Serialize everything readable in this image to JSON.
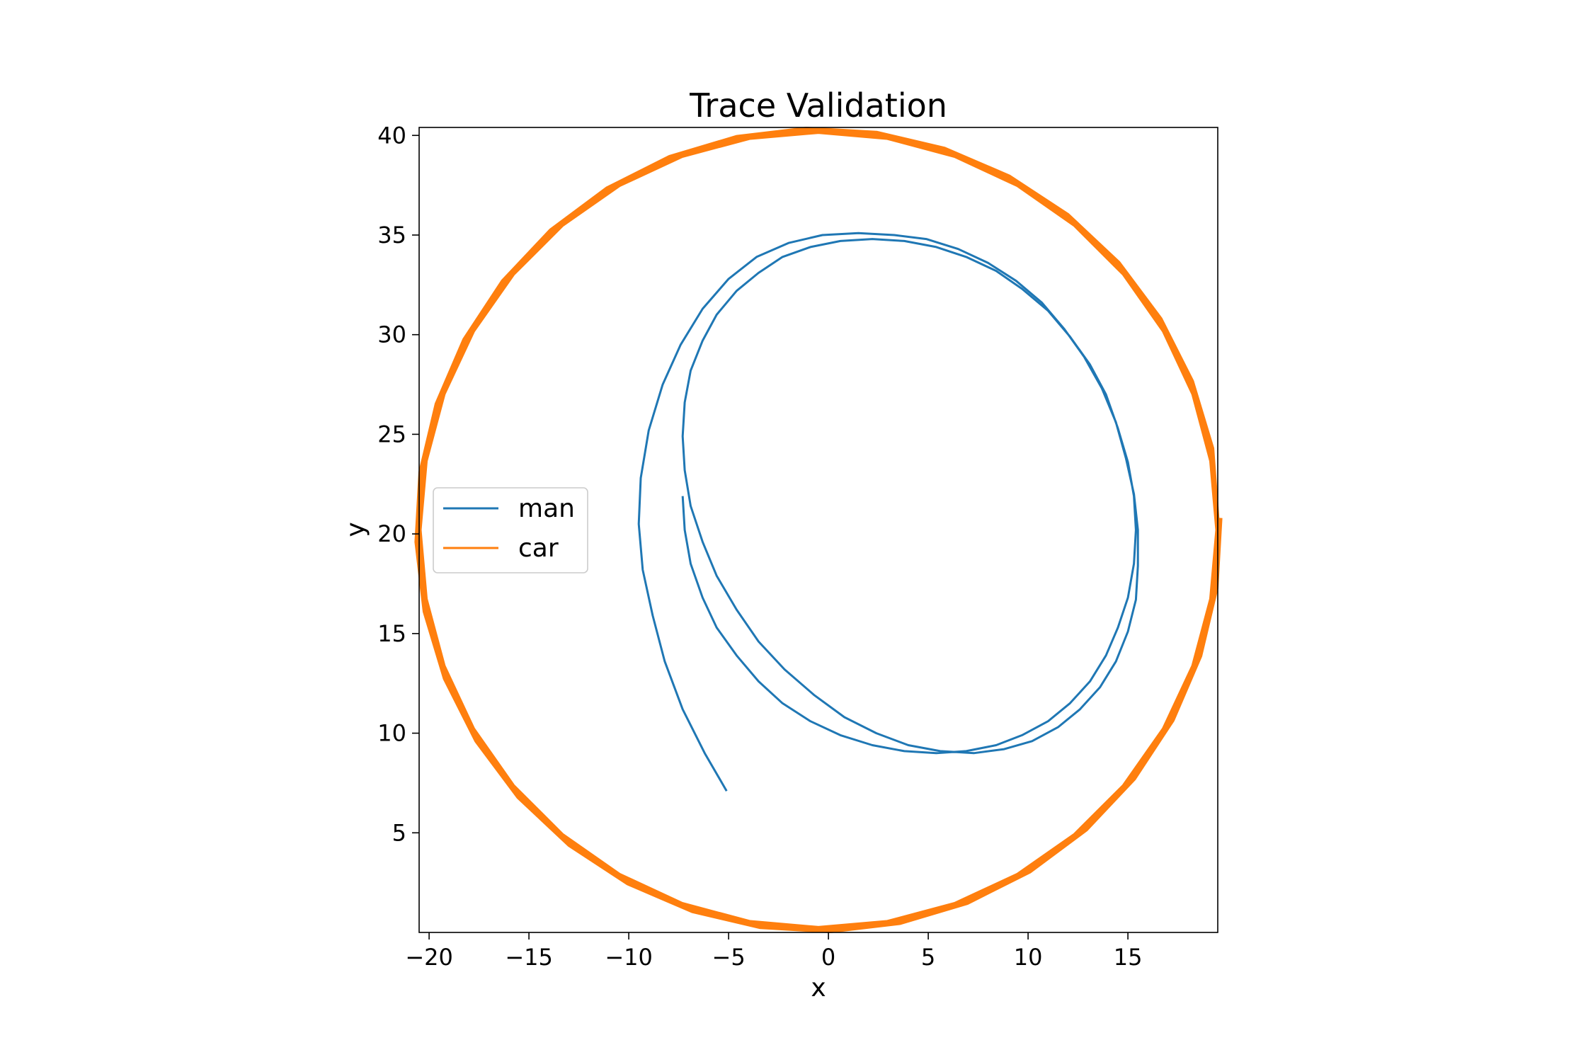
{
  "chart_data": {
    "type": "line",
    "title": "Trace Validation",
    "xlabel": "x",
    "ylabel": "y",
    "xlim": [
      -20.5,
      19.5
    ],
    "ylim": [
      0,
      40.4
    ],
    "xticks": [
      -20,
      -15,
      -10,
      -5,
      0,
      5,
      10,
      15
    ],
    "xtick_labels": [
      "−20",
      "−15",
      "−10",
      "−5",
      "0",
      "5",
      "10",
      "15"
    ],
    "yticks": [
      5,
      10,
      15,
      20,
      25,
      30,
      35,
      40
    ],
    "ytick_labels": [
      "5",
      "10",
      "15",
      "20",
      "25",
      "30",
      "35",
      "40"
    ],
    "grid": false,
    "legend_position": "center-left",
    "series": [
      {
        "name": "man",
        "color": "#1f77b4",
        "x": [
          -5.1,
          -6.2,
          -7.3,
          -8.2,
          -8.8,
          -9.3,
          -9.5,
          -9.4,
          -9.0,
          -8.3,
          -7.4,
          -6.3,
          -5.0,
          -3.6,
          -2.0,
          -0.3,
          1.5,
          3.3,
          4.9,
          6.5,
          8.0,
          9.4,
          10.7,
          11.8,
          12.8,
          13.7,
          14.4,
          14.9,
          15.3,
          15.5,
          15.5,
          15.4,
          15.0,
          14.4,
          13.6,
          12.6,
          11.5,
          10.2,
          8.8,
          7.3,
          5.6,
          4.0,
          2.4,
          0.8,
          -0.7,
          -2.2,
          -3.5,
          -4.6,
          -5.6,
          -6.3,
          -6.9,
          -7.2,
          -7.3,
          -7.2,
          -6.9,
          -6.3,
          -5.6,
          -4.6,
          -3.5,
          -2.3,
          -0.9,
          0.6,
          2.2,
          3.8,
          5.4,
          6.9,
          8.4,
          9.7,
          11.0,
          12.1,
          13.1,
          13.9,
          14.5,
          15.0,
          15.3,
          15.4,
          15.3,
          15.0,
          14.5,
          13.9,
          13.1,
          12.1,
          11.0,
          9.7,
          8.4,
          6.9,
          5.4,
          3.8,
          2.2,
          0.6,
          -0.9,
          -2.3,
          -3.5,
          -4.6,
          -5.6,
          -6.3,
          -6.9,
          -7.2,
          -7.3
        ],
        "y": [
          7.1,
          9.0,
          11.2,
          13.6,
          15.9,
          18.2,
          20.5,
          22.8,
          25.2,
          27.5,
          29.5,
          31.3,
          32.8,
          33.9,
          34.6,
          35.0,
          35.1,
          35.0,
          34.8,
          34.3,
          33.6,
          32.7,
          31.6,
          30.3,
          28.9,
          27.3,
          25.6,
          23.8,
          22.0,
          20.2,
          18.4,
          16.7,
          15.1,
          13.6,
          12.3,
          11.2,
          10.3,
          9.6,
          9.2,
          9.0,
          9.1,
          9.4,
          10.0,
          10.8,
          11.9,
          13.2,
          14.6,
          16.2,
          17.9,
          19.6,
          21.4,
          23.2,
          24.9,
          26.6,
          28.2,
          29.7,
          31.0,
          32.2,
          33.1,
          33.9,
          34.4,
          34.7,
          34.8,
          34.7,
          34.4,
          33.9,
          33.2,
          32.3,
          31.2,
          29.9,
          28.5,
          27.0,
          25.3,
          23.6,
          21.9,
          20.2,
          18.5,
          16.8,
          15.3,
          13.9,
          12.6,
          11.5,
          10.6,
          9.9,
          9.4,
          9.1,
          9.0,
          9.1,
          9.4,
          9.9,
          10.6,
          11.5,
          12.6,
          13.9,
          15.3,
          16.8,
          18.5,
          20.2,
          21.9
        ]
      },
      {
        "name": "car",
        "color": "#ff7f0e",
        "center": [
          -0.5,
          20.2
        ],
        "radius": 20.0,
        "laps": 2
      }
    ]
  }
}
